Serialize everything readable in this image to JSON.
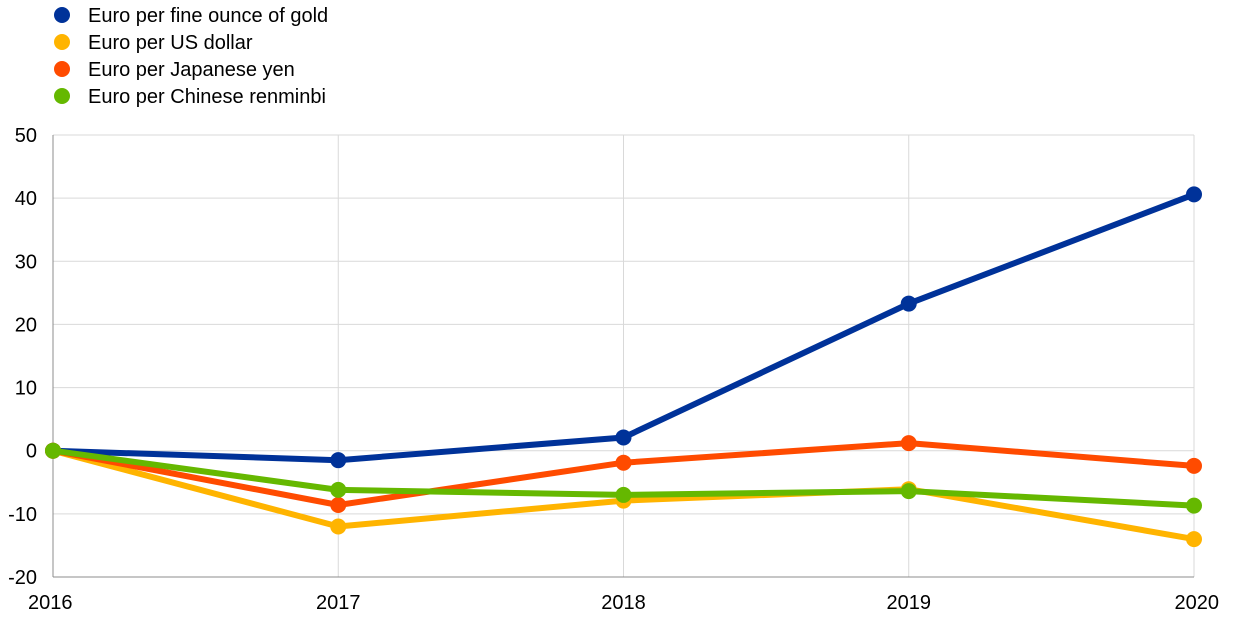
{
  "chart_data": {
    "type": "line",
    "title": "",
    "xlabel": "",
    "ylabel": "",
    "x": [
      "2016",
      "2017",
      "2018",
      "2019",
      "2020"
    ],
    "ylim": [
      -20,
      50
    ],
    "yticks": [
      50,
      40,
      30,
      20,
      10,
      0,
      -10,
      -20
    ],
    "grid": true,
    "legend_position": "top-left",
    "series": [
      {
        "name": "Euro per fine ounce of gold",
        "color": "#003299",
        "values": [
          0,
          -1.5,
          2.1,
          23.3,
          40.6
        ]
      },
      {
        "name": "Euro per US dollar",
        "color": "#FFB400",
        "values": [
          0,
          -12.0,
          -7.9,
          -6.1,
          -14.0
        ]
      },
      {
        "name": "Euro per Japanese yen",
        "color": "#FF4B00",
        "values": [
          0,
          -8.6,
          -1.9,
          1.2,
          -2.4
        ]
      },
      {
        "name": "Euro per Chinese renminbi",
        "color": "#65B800",
        "values": [
          0,
          -6.2,
          -7.0,
          -6.4,
          -8.7
        ]
      }
    ]
  }
}
